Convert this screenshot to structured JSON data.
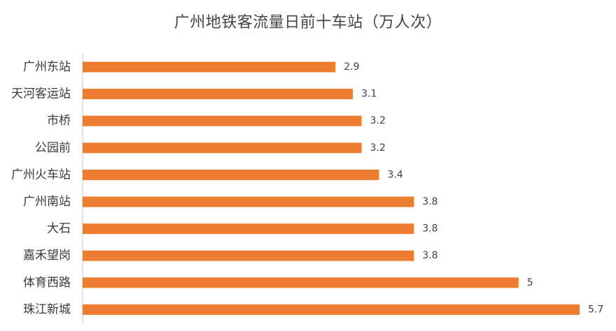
{
  "chart_data": {
    "type": "bar",
    "orientation": "horizontal",
    "title": "广州地铁客流量日前十车站（万人次）",
    "categories": [
      "广州东站",
      "天河客运站",
      "市桥",
      "公园前",
      "广州火车站",
      "广州南站",
      "大石",
      "嘉禾望岗",
      "体育西路",
      "珠江新城"
    ],
    "values": [
      2.9,
      3.1,
      3.2,
      3.2,
      3.4,
      3.8,
      3.8,
      3.8,
      5,
      5.7
    ],
    "value_labels": [
      "2.9",
      "3.1",
      "3.2",
      "3.2",
      "3.4",
      "3.8",
      "3.8",
      "3.8",
      "5",
      "5.7"
    ],
    "xlabel": "",
    "ylabel": "",
    "xlim": [
      0,
      5.7
    ],
    "grid": false,
    "legend": "none",
    "colors": {
      "bar": "#ED7D31",
      "axis": "#D9D9D9",
      "text": "#404040"
    }
  }
}
